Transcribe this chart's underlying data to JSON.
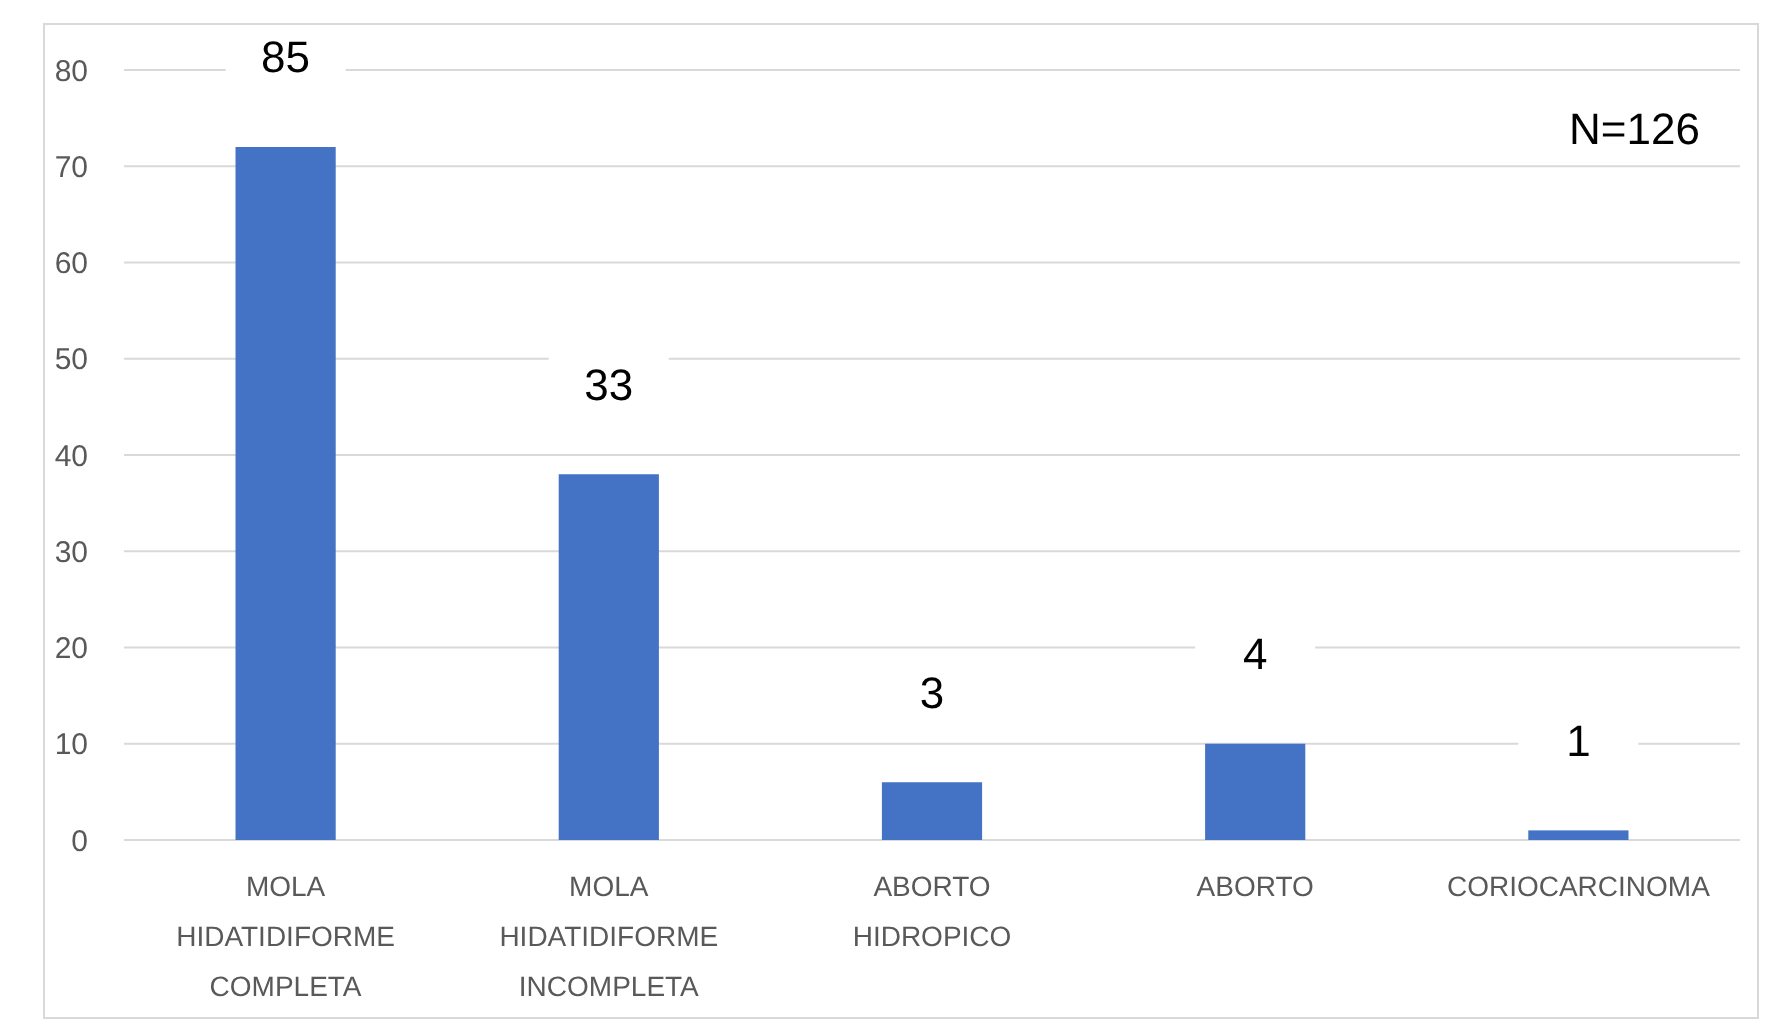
{
  "chart_data": {
    "type": "bar",
    "categories": [
      "MOLA HIDATIDIFORME COMPLETA",
      "MOLA HIDATIDIFORME INCOMPLETA",
      "ABORTO HIDROPICO",
      "ABORTO",
      "CORIOCARCINOMA"
    ],
    "values": [
      72,
      38,
      6,
      10,
      1
    ],
    "color": "#4472c4",
    "ylim": [
      0,
      80
    ],
    "yticks": [
      0,
      10,
      20,
      30,
      40,
      50,
      60,
      70,
      80
    ],
    "grid": "y",
    "annotations": [
      "N=126",
      "85",
      "33",
      "3",
      "4",
      "1"
    ]
  }
}
